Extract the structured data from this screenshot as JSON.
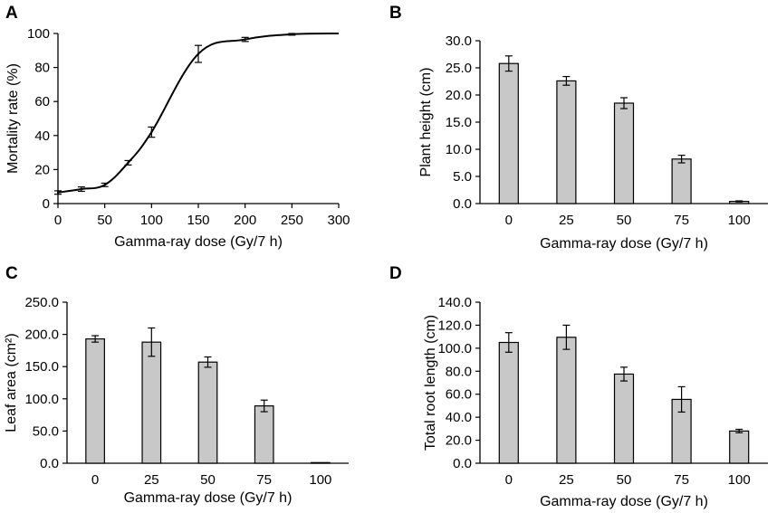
{
  "chart_data": [
    {
      "panel": "A",
      "type": "line",
      "xlabel": "Gamma-ray dose (Gy/7 h)",
      "ylabel": "Mortality rate (%)",
      "xlim": [
        0,
        300
      ],
      "ylim": [
        0,
        100
      ],
      "xticks": [
        "0",
        "50",
        "100",
        "150",
        "200",
        "250",
        "300"
      ],
      "yticks": [
        "0",
        "20",
        "40",
        "60",
        "80",
        "100"
      ],
      "x": [
        0,
        25,
        50,
        75,
        100,
        150,
        200,
        250
      ],
      "values": [
        6.5,
        8.5,
        11,
        24,
        42,
        88,
        96.5,
        99.5
      ],
      "errors": [
        1,
        1.3,
        1,
        1.3,
        3,
        5,
        1.2,
        0.5
      ]
    },
    {
      "panel": "B",
      "type": "bar",
      "xlabel": "Gamma-ray dose (Gy/7 h)",
      "ylabel": "Plant height (cm)",
      "categories": [
        "0",
        "25",
        "50",
        "75",
        "100"
      ],
      "ylim": [
        0,
        30
      ],
      "yticks": [
        "0.0",
        "5.0",
        "10.0",
        "15.0",
        "20.0",
        "25.0",
        "30.0"
      ],
      "values": [
        25.8,
        22.6,
        18.5,
        8.2,
        0.4
      ],
      "errors": [
        1.4,
        0.8,
        1.0,
        0.7,
        0.1
      ]
    },
    {
      "panel": "C",
      "type": "bar",
      "xlabel": "Gamma-ray dose (Gy/7 h)",
      "ylabel": "Leaf area (cm²)",
      "categories": [
        "0",
        "25",
        "50",
        "75",
        "100"
      ],
      "ylim": [
        0,
        250
      ],
      "yticks": [
        "0.0",
        "50.0",
        "100.0",
        "150.0",
        "200.0",
        "250.0"
      ],
      "values": [
        193,
        188,
        157,
        89,
        1
      ],
      "errors": [
        5,
        22,
        8,
        9,
        0
      ]
    },
    {
      "panel": "D",
      "type": "bar",
      "xlabel": "Gamma-ray dose (Gy/7 h)",
      "ylabel": "Total root length (cm)",
      "categories": [
        "0",
        "25",
        "50",
        "75",
        "100"
      ],
      "ylim": [
        0,
        140
      ],
      "yticks": [
        "0.0",
        "20.0",
        "40.0",
        "60.0",
        "80.0",
        "100.0",
        "120.0",
        "140.0"
      ],
      "values": [
        105,
        109.5,
        77.5,
        55.5,
        28
      ],
      "errors": [
        8.5,
        10.5,
        6,
        11,
        1.5
      ]
    }
  ],
  "colors": {
    "bar_fill": "#c8c8c8",
    "stroke": "#000000"
  }
}
